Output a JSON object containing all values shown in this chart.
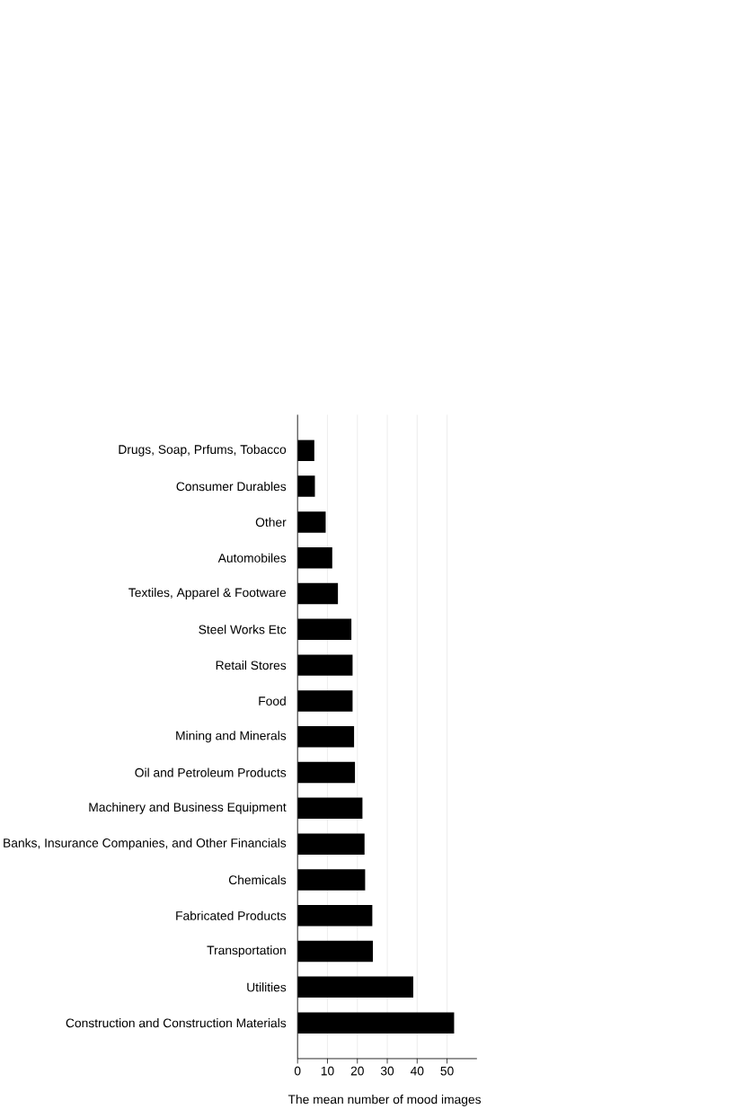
{
  "chart_data": {
    "type": "bar",
    "orientation": "horizontal",
    "xlabel": "The mean number of mood images",
    "categories": [
      "Drugs, Soap, Prfums, Tobacco",
      "Consumer Durables",
      "Other",
      "Automobiles",
      "Textiles, Apparel & Footware",
      "Steel Works Etc",
      "Retail Stores",
      "Food",
      "Mining and Minerals",
      "Oil and Petroleum Products",
      "Machinery and Business Equipment",
      "Banks, Insurance Companies, and Other Financials",
      "Chemicals",
      "Fabricated Products",
      "Transportation",
      "Utilities",
      "Construction and Construction Materials"
    ],
    "values": [
      5.6,
      5.8,
      9.4,
      11.6,
      13.5,
      18.0,
      18.4,
      18.4,
      18.9,
      19.2,
      21.7,
      22.4,
      22.6,
      25.0,
      25.2,
      38.7,
      52.4
    ],
    "color": "#000000",
    "xlim": [
      0,
      60
    ],
    "xticks": [
      0,
      10,
      20,
      30,
      40,
      50
    ],
    "grid": "x"
  }
}
